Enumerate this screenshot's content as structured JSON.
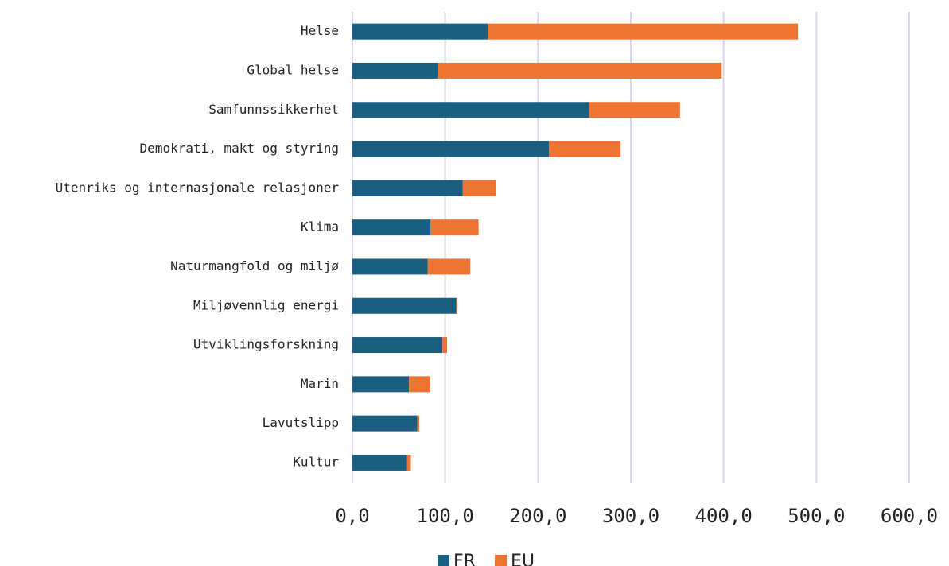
{
  "chart_data": {
    "type": "bar",
    "orientation": "horizontal",
    "stacked": true,
    "title": "",
    "xlabel": "",
    "ylabel": "",
    "categories": [
      "Helse",
      "Global helse",
      "Samfunnssikkerhet",
      "Demokrati, makt og styring",
      "Utenriks og internasjonale relasjoner",
      "Klima",
      "Naturmangfold og miljø",
      "Miljøvennlig energi",
      "Utviklingsforskning",
      "Marin",
      "Lavutslipp",
      "Kultur"
    ],
    "series": [
      {
        "name": "FR",
        "color": "#1a5e80",
        "values": [
          146,
          92,
          255,
          212,
          119,
          84,
          81,
          112,
          97,
          61,
          70,
          59
        ]
      },
      {
        "name": "EU",
        "color": "#ed7433",
        "values": [
          334,
          306,
          98,
          77,
          36,
          52,
          46,
          1,
          5,
          23,
          2,
          4
        ]
      }
    ],
    "xlim": [
      0,
      600
    ],
    "xticks": [
      0,
      100,
      200,
      300,
      400,
      500,
      600
    ],
    "xtick_labels": [
      "0,0",
      "100,0",
      "200,0",
      "300,0",
      "400,0",
      "500,0",
      "600,0"
    ],
    "grid": "vertical",
    "gridline_color": "#d6d6ee",
    "legend_position": "bottom-center"
  }
}
